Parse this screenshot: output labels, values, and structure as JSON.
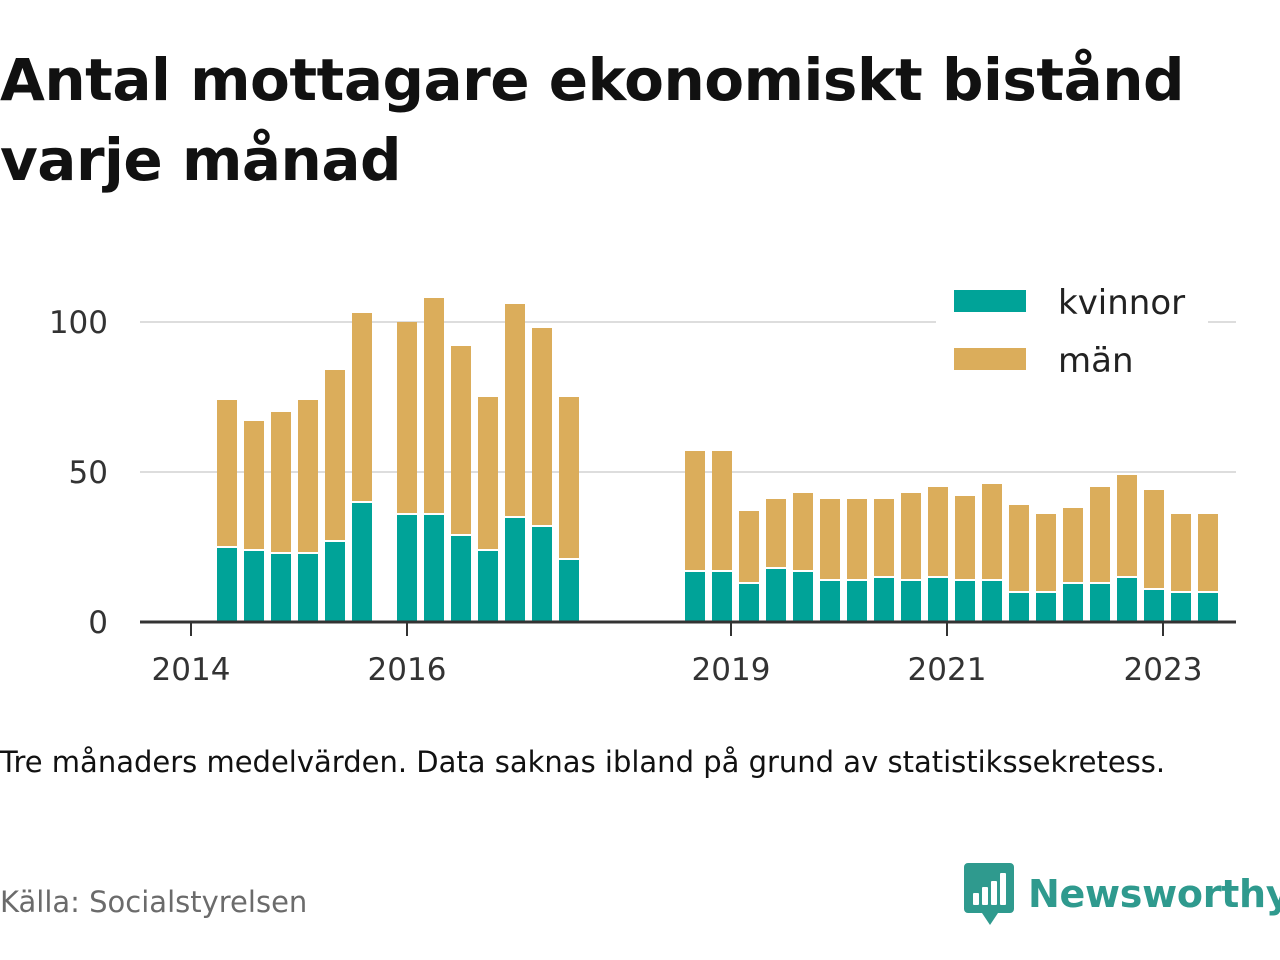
{
  "title": "Antal mottagare ekonomiskt bistånd varje månad",
  "note": "Tre månaders medelvärden. Data saknas ibland på grund av statistikssekretess.",
  "source": "Källa: Socialstyrelsen",
  "brand": {
    "name": "Newsworthy",
    "icon": "newsworthy-logo-icon",
    "color": "#2f9a8e"
  },
  "colors": {
    "kvinnor": "#00a398",
    "man": "#dbad5b",
    "grid": "#dddddd",
    "axis": "#333333"
  },
  "chart_data": {
    "type": "bar",
    "stacked": true,
    "grid": true,
    "legend_position": "top-right",
    "ylim": [
      0,
      110
    ],
    "y_ticks": [
      0,
      50,
      100
    ],
    "x_ticks": [
      {
        "label": "2014",
        "date": "2014-01"
      },
      {
        "label": "2016",
        "date": "2016-01"
      },
      {
        "label": "2019",
        "date": "2019-01"
      },
      {
        "label": "2021",
        "date": "2021-01"
      },
      {
        "label": "2023",
        "date": "2023-01"
      }
    ],
    "categories": [
      "2014-05",
      "2014-08",
      "2014-11",
      "2015-02",
      "2015-05",
      "2015-08",
      "2016-01",
      "2016-04",
      "2016-07",
      "2016-10",
      "2017-01",
      "2017-04",
      "2017-07",
      "2018-09",
      "2018-12",
      "2019-03",
      "2019-06",
      "2019-09",
      "2019-12",
      "2020-03",
      "2020-06",
      "2020-09",
      "2020-12",
      "2021-03",
      "2021-06",
      "2021-09",
      "2021-12",
      "2022-03",
      "2022-06",
      "2022-09",
      "2022-12",
      "2023-03",
      "2023-06"
    ],
    "series": [
      {
        "name": "kvinnor",
        "values": [
          25,
          24,
          23,
          23,
          27,
          40,
          36,
          36,
          29,
          24,
          35,
          32,
          21,
          17,
          17,
          13,
          18,
          17,
          14,
          14,
          15,
          14,
          15,
          14,
          14,
          10,
          10,
          13,
          13,
          15,
          11,
          10,
          10
        ]
      },
      {
        "name": "män",
        "values": [
          49,
          43,
          47,
          51,
          57,
          63,
          64,
          72,
          63,
          51,
          71,
          66,
          54,
          40,
          40,
          24,
          23,
          26,
          27,
          27,
          26,
          29,
          30,
          28,
          32,
          29,
          26,
          25,
          32,
          34,
          33,
          26,
          26
        ]
      }
    ]
  }
}
